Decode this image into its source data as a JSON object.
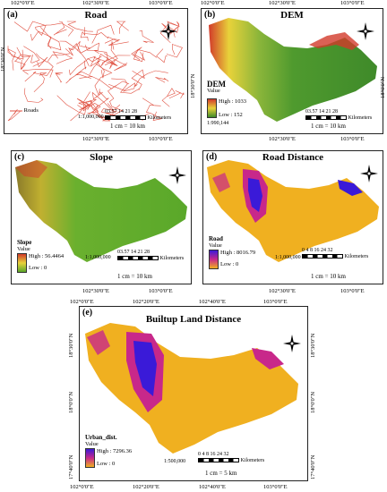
{
  "panels": {
    "a": {
      "label": "(a)",
      "title": "Road",
      "legend_item": "Roads",
      "scale_ticks": "03.57  14  21  28",
      "scale_unit": "Kilometers",
      "ratio": "1:1,000,000",
      "cm_km": "1 cm = 10 km",
      "road_color": "#e05040"
    },
    "b": {
      "label": "(b)",
      "title": "DEM",
      "legend_title": "DEM",
      "legend_value": "Value",
      "high": "High : 1033",
      "low": "Low : 152",
      "ratio": "1:990,144",
      "scale_ticks": "03.57  14  21  28",
      "scale_unit": "Kilometers",
      "cm_km": "1 cm = 10 km"
    },
    "c": {
      "label": "(c)",
      "title": "Slope",
      "legend_title": "Slope",
      "legend_value": "Value",
      "high": "High : 56.4464",
      "low": "Low : 0",
      "ratio": "1:1,000,000",
      "scale_ticks": "03.57  14  21  28",
      "scale_unit": "Kilometers",
      "cm_km": "1 cm = 10 km"
    },
    "d": {
      "label": "(d)",
      "title": "Road Distance",
      "legend_title": "Road",
      "legend_value": "Value",
      "high": "High : 8016.79",
      "low": "Low : 0",
      "ratio": "1:1,000,000",
      "scale_ticks": "0 4 8   16   24   32",
      "scale_unit": "Kilometers",
      "cm_km": "1 cm = 10 km"
    },
    "e": {
      "label": "(e)",
      "title": "Builtup Land Distance",
      "legend_title": "Urban_dist.",
      "legend_value": "Value",
      "high": "High : 7296.36",
      "low": "Low : 0",
      "ratio": "1:500,000",
      "scale_ticks": "0 4 8   16   24   32",
      "scale_unit": "Kilometers",
      "cm_km": "1 cm = 5 km"
    }
  },
  "coords": {
    "lon_102_00": "102°0'0\"E",
    "lon_102_30": "102°30'0\"E",
    "lon_103_00": "103°0'0\"E",
    "lat_18_30": "18°30'0\"N",
    "lat_18_00": "18°0'0\"N",
    "lon_e_1": "102°0'0\"E",
    "lon_e_2": "102°20'0\"E",
    "lon_e_3": "102°40'0\"E",
    "lon_e_4": "103°0'0\"E",
    "lat_e_1": "18°30'0\"N",
    "lat_e_2": "18°0'0\"N",
    "lat_e_3": "17°40'0\"N"
  },
  "north_letter": "N",
  "colors": {
    "dem_high": "#d23a2a",
    "dem_mid": "#e8d23a",
    "dem_low": "#3f8a2a",
    "slope_high": "#d23a2a",
    "slope_low": "#5aa82a",
    "dist_high": "#3a1ad8",
    "dist_mid": "#c8288a",
    "dist_low": "#f0b020"
  }
}
